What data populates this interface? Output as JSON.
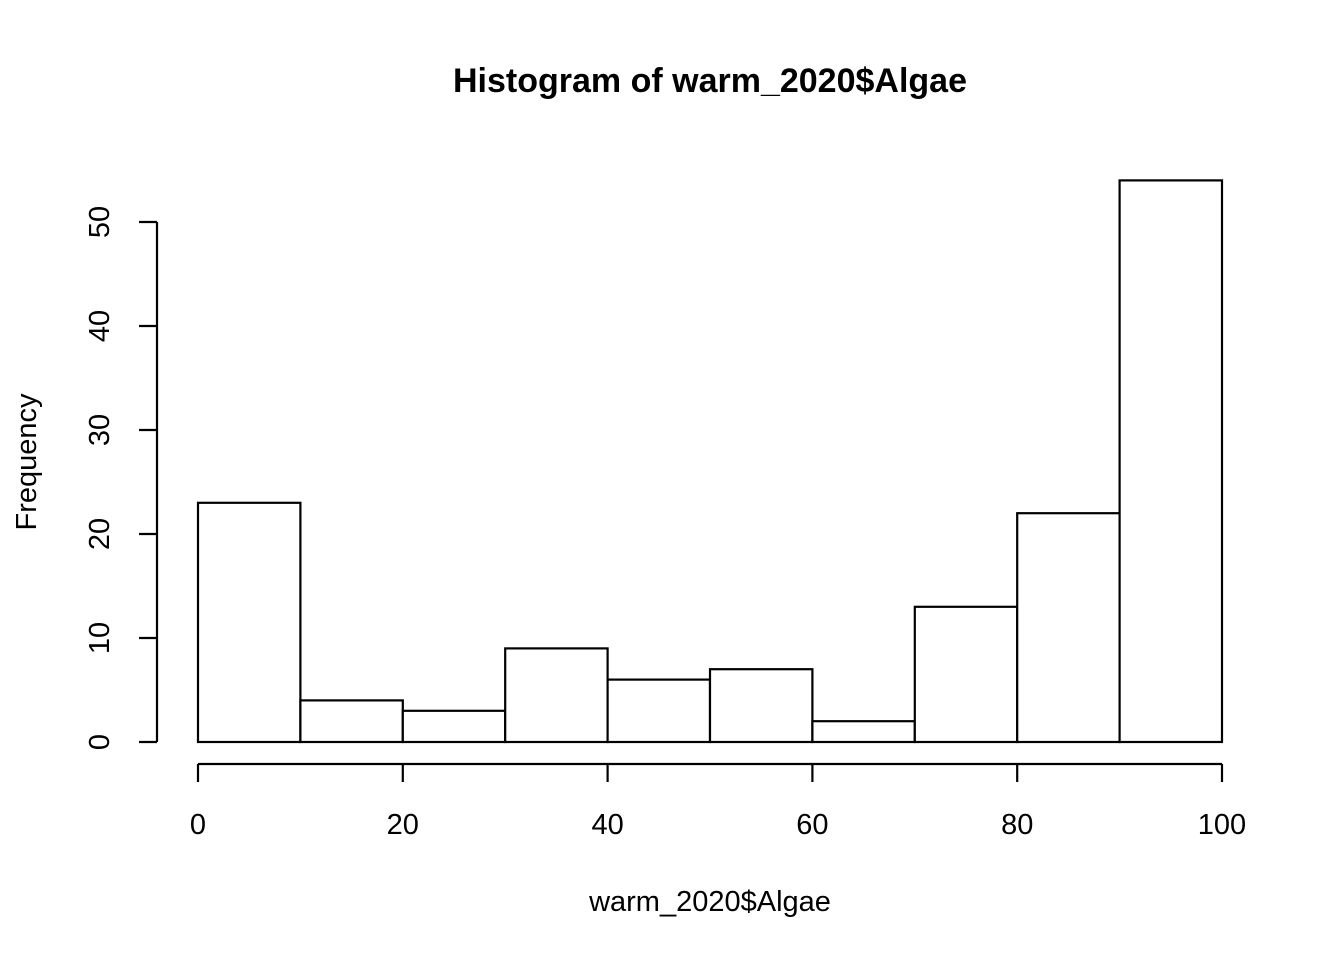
{
  "chart_data": {
    "type": "bar",
    "title": "Histogram of warm_2020$Algae",
    "xlabel": "warm_2020$Algae",
    "ylabel": "Frequency",
    "bins": [
      {
        "start": 0,
        "end": 10,
        "count": 23
      },
      {
        "start": 10,
        "end": 20,
        "count": 4
      },
      {
        "start": 20,
        "end": 30,
        "count": 3
      },
      {
        "start": 30,
        "end": 40,
        "count": 9
      },
      {
        "start": 40,
        "end": 50,
        "count": 6
      },
      {
        "start": 50,
        "end": 60,
        "count": 7
      },
      {
        "start": 60,
        "end": 70,
        "count": 2
      },
      {
        "start": 70,
        "end": 80,
        "count": 13
      },
      {
        "start": 80,
        "end": 90,
        "count": 22
      },
      {
        "start": 90,
        "end": 100,
        "count": 54
      }
    ],
    "xlim": [
      0,
      100
    ],
    "ylim": [
      0,
      54
    ],
    "x_ticks": [
      0,
      20,
      40,
      60,
      80,
      100
    ],
    "y_ticks": [
      0,
      10,
      20,
      30,
      40,
      50
    ],
    "x_tick_labels": [
      "0",
      "20",
      "40",
      "60",
      "80",
      "100"
    ],
    "y_tick_labels": [
      "0",
      "10",
      "20",
      "30",
      "40",
      "50"
    ],
    "grid": false,
    "legend": "none"
  }
}
